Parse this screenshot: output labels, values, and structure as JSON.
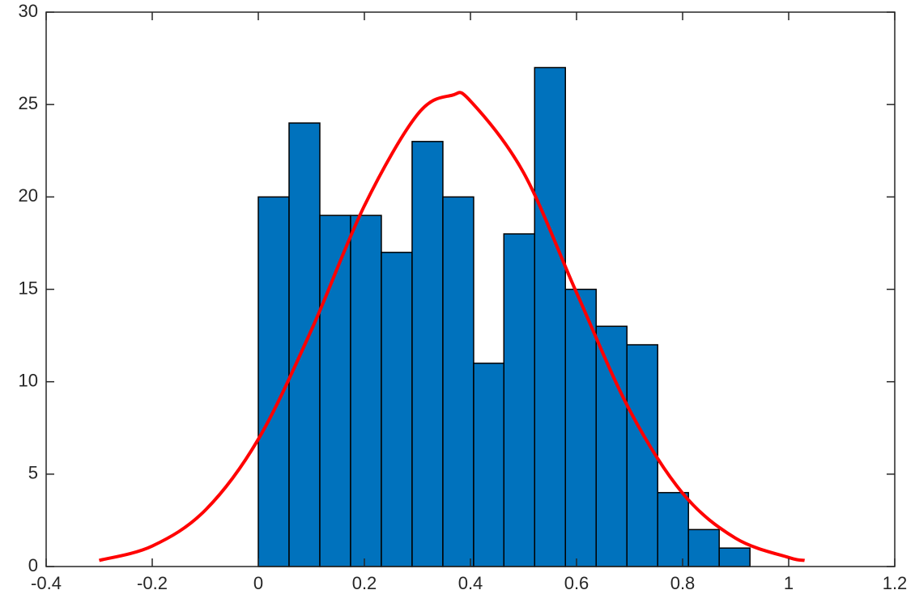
{
  "chart_data": {
    "type": "histogram",
    "bins": [
      0,
      0.058,
      0.116,
      0.174,
      0.232,
      0.29,
      0.348,
      0.406,
      0.463,
      0.521,
      0.579,
      0.637,
      0.695,
      0.753,
      0.811,
      0.869,
      0.927
    ],
    "counts": [
      20,
      24,
      19,
      19,
      17,
      23,
      20,
      11,
      18,
      27,
      15,
      13,
      12,
      4,
      2,
      1
    ],
    "color": "#0072bd",
    "series": [
      {
        "color": "#ff0000",
        "x": [
          -0.3,
          -0.2,
          -0.1,
          0,
          0.1,
          0.2,
          0.3,
          0.365,
          0.4,
          0.5,
          0.6,
          0.7,
          0.8,
          0.9,
          1.0,
          1.03
        ],
        "values": [
          0.33,
          1.11,
          3.05,
          6.89,
          12.79,
          19.52,
          24.46,
          25.5,
          25.19,
          21.32,
          14.82,
          8.47,
          3.97,
          1.53,
          0.49,
          0.33
        ]
      }
    ],
    "xlim": [
      -0.4,
      1.2
    ],
    "xticks": [
      -0.4,
      -0.2,
      0,
      0.2,
      0.4,
      0.6,
      0.8,
      1,
      1.2
    ],
    "ylim": [
      0,
      30
    ],
    "yticks": [
      0,
      5,
      10,
      15,
      20,
      25,
      30
    ]
  }
}
